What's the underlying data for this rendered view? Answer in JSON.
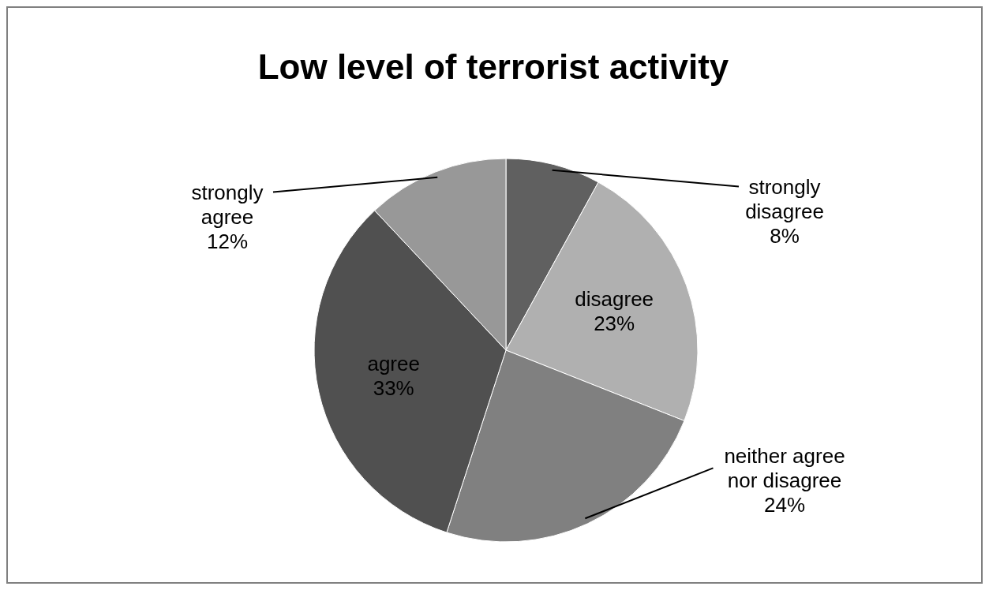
{
  "chart_data": {
    "type": "pie",
    "title": "Low level of terrorist activity",
    "categories": [
      "strongly disagree",
      "disagree",
      "neither agree nor disagree",
      "agree",
      "strongly agree"
    ],
    "values": [
      8,
      23,
      24,
      33,
      12
    ],
    "value_labels": [
      "8%",
      "23%",
      "24%",
      "33%",
      "12%"
    ],
    "colors": [
      "#606060",
      "#b0b0b0",
      "#808080",
      "#505050",
      "#989898"
    ]
  }
}
